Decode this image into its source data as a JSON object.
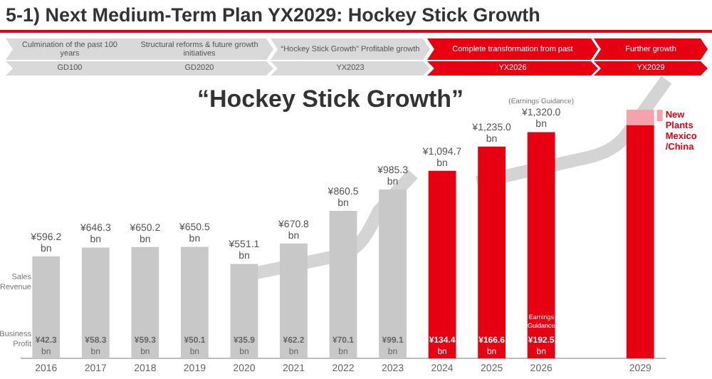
{
  "chart_data": {
    "type": "bar",
    "title": "5-1) Next Medium-Term Plan YX2029: Hockey Stick Growth",
    "stacked": true,
    "data_labels": false,
    "grid": false,
    "legend": "right",
    "categories": [
      "2016",
      "2017",
      "2018",
      "2019",
      "2020",
      "2021",
      "2022",
      "2023",
      "2024",
      "2025",
      "2026",
      null,
      "2029"
    ],
    "series": [
      {
        "name": "Sales Revenue",
        "colors": [
          "#c8c8c8",
          "#c8c8c8",
          "#c8c8c8",
          "#c8c8c8",
          "#c8c8c8",
          "#c8c8c8",
          "#c8c8c8",
          "#c8c8c8",
          "#e60012",
          "#e60012",
          "#e60012",
          "#e60012",
          "#e60012"
        ],
        "values": [
          596.2,
          646.3,
          650.2,
          650.5,
          551.1,
          670.8,
          860.5,
          985.3,
          1094.7,
          1235.0,
          1320.0,
          null,
          1360
        ],
        "value_labels": [
          "¥596.2 bn",
          "¥646.3 bn",
          "¥650.2 bn",
          "¥650.5 bn",
          "¥551.1 bn",
          "¥670.8 bn",
          "¥860.5 bn",
          "¥985.3 bn",
          "¥1,094.7 bn",
          "¥1,235.0 bn",
          "¥1,320.0 bn",
          null,
          null
        ]
      },
      {
        "name": "New Plants Mexico /China",
        "color": "#f4a3aa",
        "values": [
          null,
          null,
          null,
          null,
          null,
          null,
          null,
          null,
          null,
          null,
          null,
          null,
          90
        ]
      }
    ],
    "annotations": [
      "Culmination of the past 100 years",
      "GD100",
      "Structural reforms & future growth initiatives",
      "GD2020",
      "“Hockey Stick Growth” Profitable growth",
      "YX2023",
      "Complete transformation from past",
      "YX2026",
      "Further growth",
      "YX2029",
      "“Hockey Stick Growth”",
      "(Earnings Guidance)",
      "Earnings Guidance",
      "Business Profit",
      "¥42.3 bn",
      "¥58.3 bn",
      "¥59.3 bn",
      "¥50.1 bn",
      "¥35.9 bn",
      "¥62.2 bn",
      "¥70.1 bn",
      "¥99.1 bn",
      "¥134.4 bn",
      "¥166.6 bn",
      "¥192.5 bn"
    ]
  }
}
